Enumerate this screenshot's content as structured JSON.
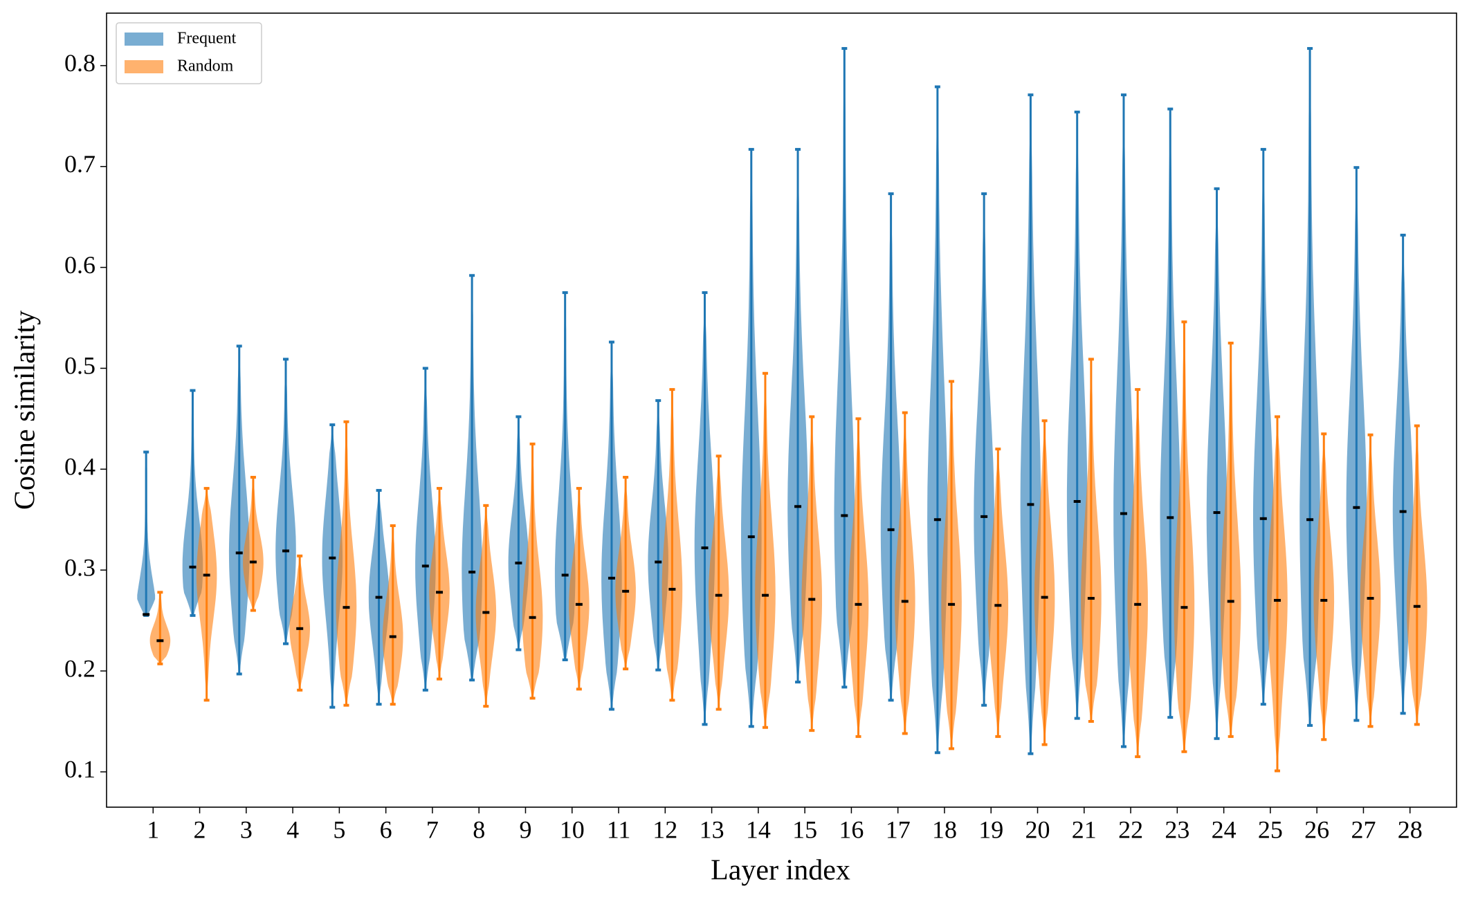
{
  "chart_data": {
    "type": "violin",
    "xlabel": "Layer index",
    "ylabel": "Cosine similarity",
    "x": [
      1,
      2,
      3,
      4,
      5,
      6,
      7,
      8,
      9,
      10,
      11,
      12,
      13,
      14,
      15,
      16,
      17,
      18,
      19,
      20,
      21,
      22,
      23,
      24,
      25,
      26,
      27,
      28
    ],
    "xlim": [
      0,
      29
    ],
    "xticks": [
      1,
      2,
      3,
      4,
      5,
      6,
      7,
      8,
      9,
      10,
      11,
      12,
      13,
      14,
      15,
      16,
      17,
      18,
      19,
      20,
      21,
      22,
      23,
      24,
      25,
      26,
      27,
      28
    ],
    "ylim": [
      0.065,
      0.852
    ],
    "yticks": [
      0.1,
      0.2,
      0.3,
      0.4,
      0.5,
      0.6,
      0.7,
      0.8
    ],
    "legend": "upper left",
    "series": [
      {
        "name": "Frequent",
        "color": "#1f77b4",
        "max": [
          0.417,
          0.478,
          0.522,
          0.509,
          0.444,
          0.379,
          0.5,
          0.592,
          0.452,
          0.575,
          0.526,
          0.468,
          0.575,
          0.717,
          0.717,
          0.817,
          0.673,
          0.779,
          0.673,
          0.771,
          0.754,
          0.771,
          0.757,
          0.678,
          0.717,
          0.817,
          0.699,
          0.632
        ],
        "median": [
          0.256,
          0.303,
          0.317,
          0.319,
          0.312,
          0.273,
          0.304,
          0.298,
          0.307,
          0.295,
          0.292,
          0.308,
          0.322,
          0.333,
          0.363,
          0.354,
          0.34,
          0.35,
          0.353,
          0.365,
          0.368,
          0.356,
          0.352,
          0.357,
          0.351,
          0.35,
          0.362,
          0.358
        ],
        "min": [
          0.255,
          0.255,
          0.197,
          0.227,
          0.164,
          0.167,
          0.181,
          0.191,
          0.221,
          0.211,
          0.162,
          0.201,
          0.147,
          0.145,
          0.189,
          0.184,
          0.171,
          0.119,
          0.166,
          0.118,
          0.153,
          0.125,
          0.154,
          0.133,
          0.167,
          0.146,
          0.151,
          0.158
        ]
      },
      {
        "name": "Random",
        "color": "#ff7f0e",
        "max": [
          0.278,
          0.381,
          0.392,
          0.314,
          0.447,
          0.344,
          0.381,
          0.364,
          0.425,
          0.381,
          0.392,
          0.479,
          0.413,
          0.495,
          0.452,
          0.45,
          0.456,
          0.487,
          0.42,
          0.448,
          0.509,
          0.479,
          0.546,
          0.525,
          0.452,
          0.435,
          0.434,
          0.443
        ],
        "median": [
          0.23,
          0.295,
          0.308,
          0.242,
          0.263,
          0.234,
          0.278,
          0.258,
          0.253,
          0.266,
          0.279,
          0.281,
          0.275,
          0.275,
          0.271,
          0.266,
          0.269,
          0.266,
          0.265,
          0.273,
          0.272,
          0.266,
          0.263,
          0.269,
          0.27,
          0.27,
          0.272,
          0.264
        ],
        "min": [
          0.207,
          0.171,
          0.26,
          0.181,
          0.166,
          0.167,
          0.192,
          0.165,
          0.173,
          0.182,
          0.202,
          0.171,
          0.162,
          0.144,
          0.141,
          0.135,
          0.138,
          0.123,
          0.135,
          0.127,
          0.15,
          0.115,
          0.12,
          0.135,
          0.101,
          0.132,
          0.145,
          0.147
        ]
      }
    ]
  }
}
